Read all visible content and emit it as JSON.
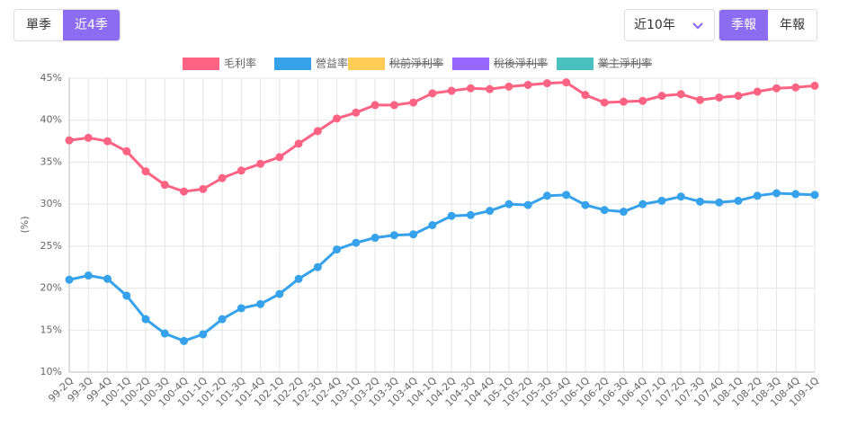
{
  "controls": {
    "period": [
      "單季",
      "近4季"
    ],
    "period_active": 1,
    "range": "近10年",
    "report": [
      "季報",
      "年報"
    ],
    "report_active": 0
  },
  "chart_data": {
    "type": "line",
    "y_label": "(%)",
    "categories": [
      "99-2Q",
      "99-3Q",
      "99-4Q",
      "100-1Q",
      "100-2Q",
      "100-3Q",
      "100-4Q",
      "101-1Q",
      "101-2Q",
      "101-3Q",
      "101-4Q",
      "102-1Q",
      "102-2Q",
      "102-3Q",
      "102-4Q",
      "103-1Q",
      "103-2Q",
      "103-3Q",
      "103-4Q",
      "104-1Q",
      "104-2Q",
      "104-3Q",
      "104-4Q",
      "105-1Q",
      "105-2Q",
      "105-3Q",
      "105-4Q",
      "106-1Q",
      "106-2Q",
      "106-3Q",
      "106-4Q",
      "107-1Q",
      "107-2Q",
      "107-3Q",
      "107-4Q",
      "108-1Q",
      "108-2Q",
      "108-3Q",
      "108-4Q",
      "109-1Q"
    ],
    "series": [
      {
        "name": "毛利率",
        "color": "#ff6384",
        "values": [
          37.6,
          37.9,
          37.5,
          36.3,
          33.9,
          32.3,
          31.5,
          31.8,
          33.1,
          34.0,
          34.8,
          35.6,
          37.2,
          38.7,
          40.2,
          40.9,
          41.8,
          41.8,
          42.1,
          43.2,
          43.5,
          43.8,
          43.7,
          44.0,
          44.2,
          44.4,
          44.5,
          43.0,
          42.1,
          42.2,
          42.3,
          42.9,
          43.1,
          42.4,
          42.7,
          42.9,
          43.4,
          43.8,
          43.9,
          44.1
        ]
      },
      {
        "name": "營益率",
        "color": "#36a2eb",
        "values": [
          21.0,
          21.5,
          21.1,
          19.1,
          16.3,
          14.6,
          13.7,
          14.5,
          16.3,
          17.6,
          18.1,
          19.3,
          21.1,
          22.5,
          24.6,
          25.4,
          26.0,
          26.3,
          26.4,
          27.5,
          28.6,
          28.7,
          29.2,
          30.0,
          29.9,
          31.0,
          31.1,
          29.9,
          29.3,
          29.1,
          30.0,
          30.4,
          30.9,
          30.3,
          30.2,
          30.4,
          31.0,
          31.3,
          31.2,
          31.1
        ]
      },
      {
        "name": "稅前淨利率",
        "color": "#ffcd56",
        "hidden": true
      },
      {
        "name": "稅後淨利率",
        "color": "#9966ff",
        "hidden": true
      },
      {
        "name": "業主淨利率",
        "color": "#4bc0c0",
        "hidden": true
      }
    ],
    "ylim": [
      10,
      45
    ],
    "yticks": [
      {
        "value": 10,
        "label": "10%"
      },
      {
        "value": 15,
        "label": "15%"
      },
      {
        "value": 20,
        "label": "20%"
      },
      {
        "value": 25,
        "label": "25%"
      },
      {
        "value": 30,
        "label": "30%"
      },
      {
        "value": 35,
        "label": "35%"
      },
      {
        "value": 40,
        "label": "40%"
      },
      {
        "value": 45,
        "label": "45%"
      }
    ],
    "grid": true,
    "legend": "top"
  }
}
